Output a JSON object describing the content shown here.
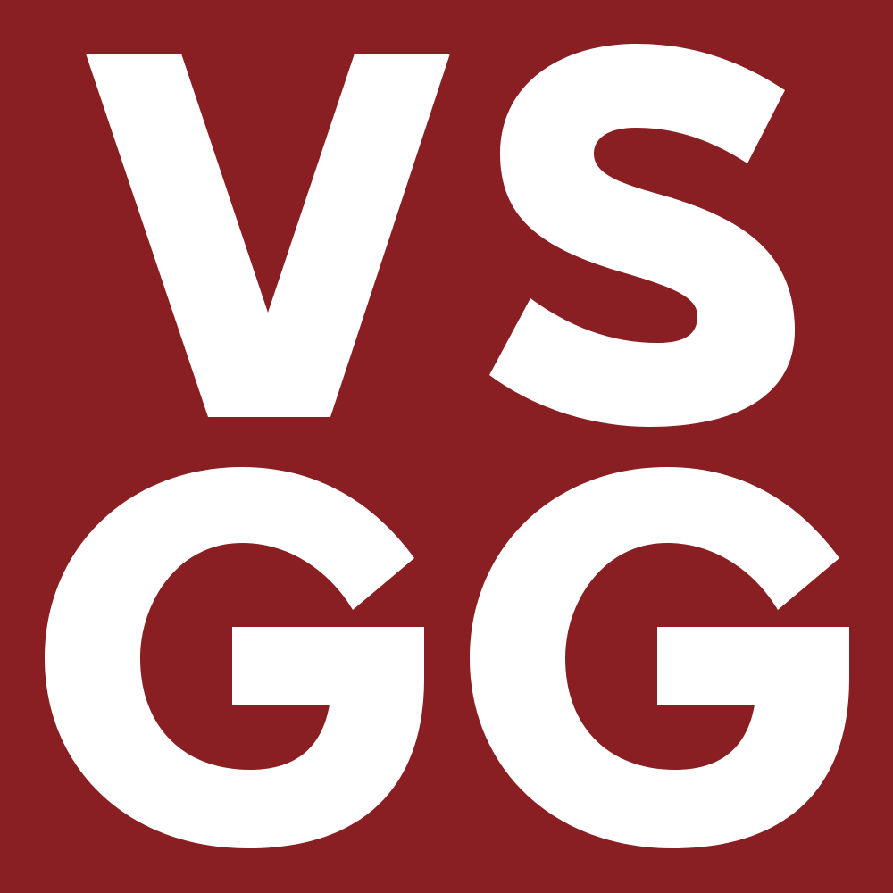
{
  "logo": {
    "lettering": [
      "V",
      "S",
      "G",
      "G"
    ],
    "background_color": "#891f22",
    "letter_color": "#ffffff"
  }
}
